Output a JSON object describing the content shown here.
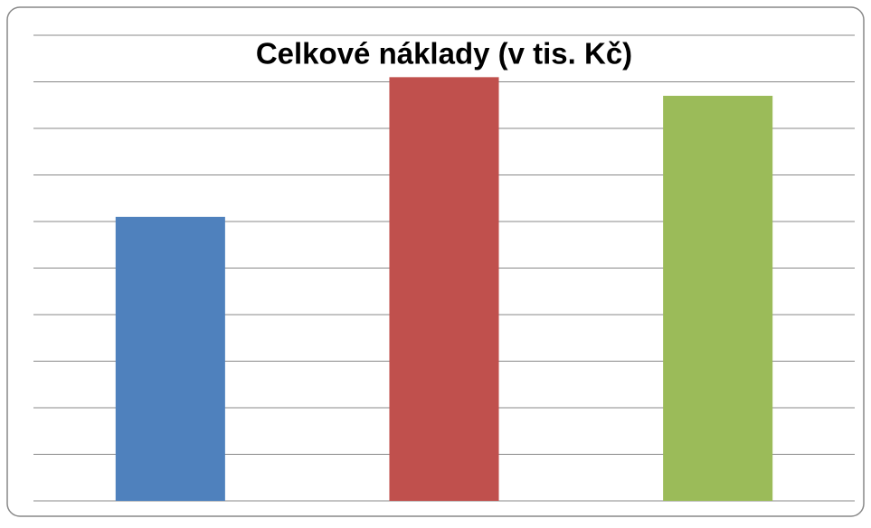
{
  "chart_data": {
    "type": "bar",
    "title": "Celkové náklady (v tis. Kč)",
    "values": [
      6.1,
      9.1,
      8.7
    ],
    "colors": [
      "#4f81bd",
      "#c0504d",
      "#9bbb59"
    ],
    "ylim": [
      0,
      10
    ],
    "yticks": [
      0,
      1,
      2,
      3,
      4,
      5,
      6,
      7,
      8,
      9,
      10
    ],
    "grid": true
  }
}
